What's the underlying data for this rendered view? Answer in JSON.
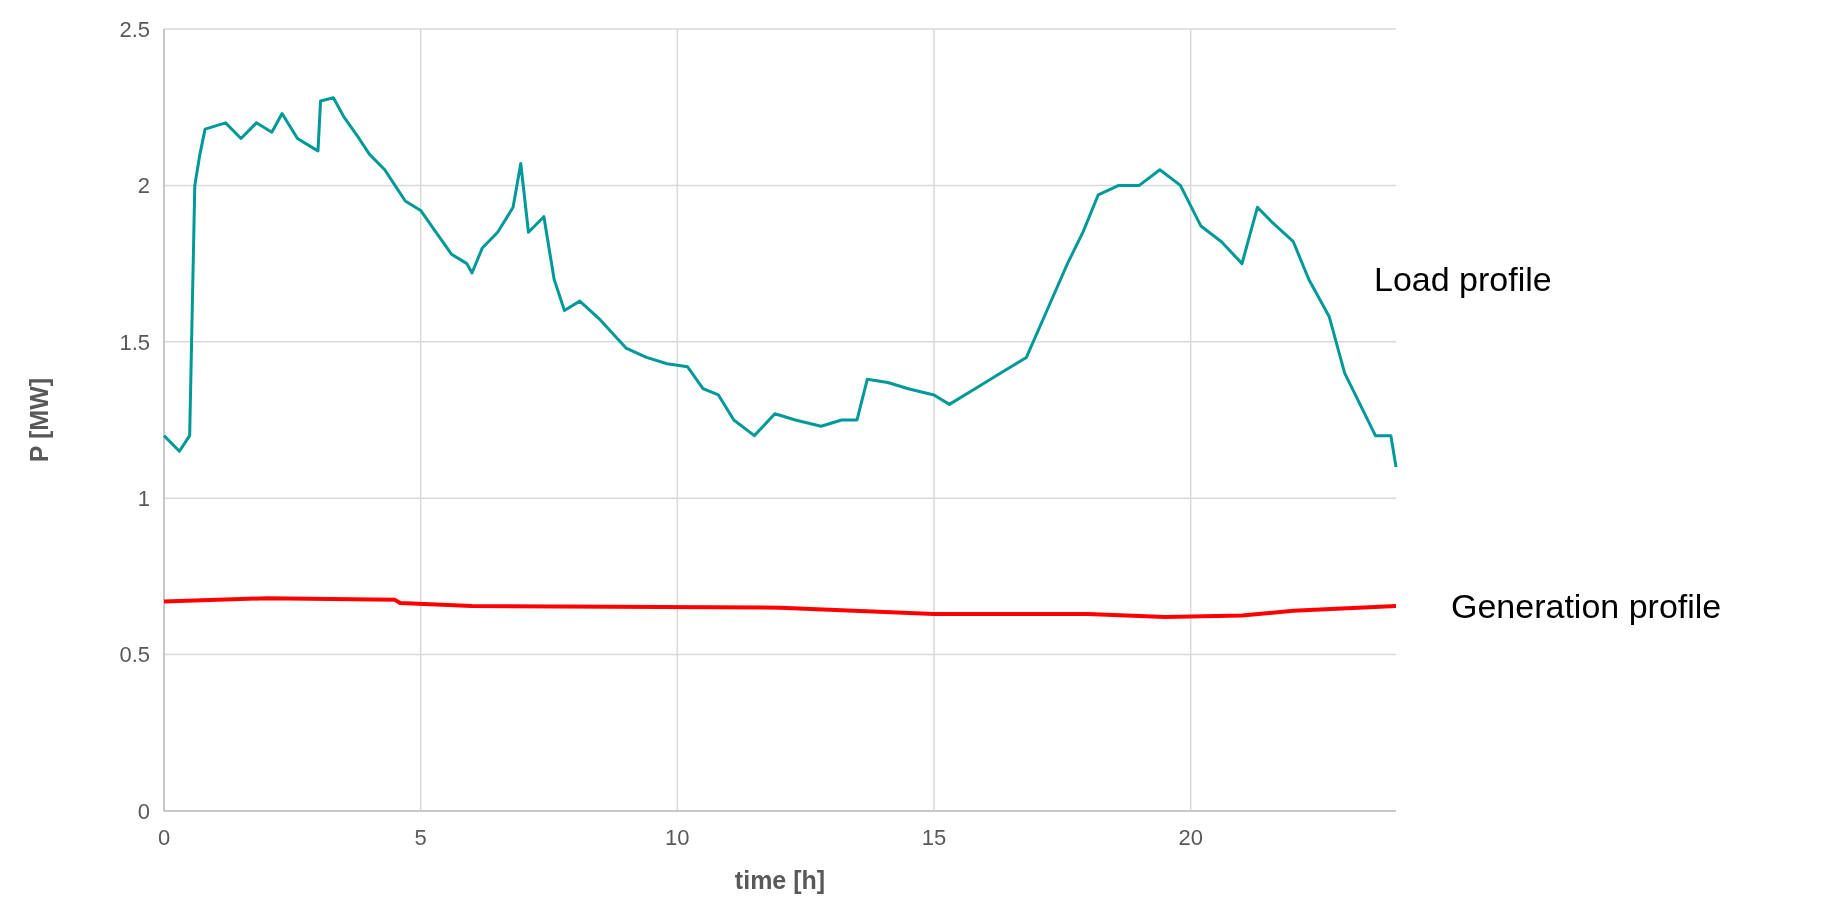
{
  "chart_data": {
    "type": "line",
    "xlabel": "time [h]",
    "ylabel": "P [MW]",
    "xlim": [
      0,
      24
    ],
    "xticks": [
      0,
      5,
      10,
      15,
      20
    ],
    "ylim": [
      0,
      2.5
    ],
    "yticks": [
      0,
      0.5,
      1,
      1.5,
      2,
      2.5
    ],
    "grid": true,
    "marker": "none",
    "line_style": "solid",
    "series": [
      {
        "name": "Load profile",
        "color": "#009999",
        "x": [
          0,
          0.3,
          0.5,
          0.55,
          0.6,
          0.7,
          0.8,
          1.2,
          1.5,
          1.8,
          2.1,
          2.3,
          2.6,
          2.9,
          3.0,
          3.05,
          3.3,
          3.5,
          3.8,
          4.0,
          4.3,
          4.5,
          4.7,
          5.0,
          5.3,
          5.6,
          5.9,
          6.0,
          6.2,
          6.5,
          6.8,
          6.95,
          7.1,
          7.4,
          7.6,
          7.8,
          8.1,
          8.5,
          9.0,
          9.4,
          9.8,
          10.2,
          10.5,
          10.8,
          11.1,
          11.5,
          11.9,
          12.3,
          12.8,
          13.2,
          13.5,
          13.7,
          14.1,
          14.5,
          15.0,
          15.3,
          15.8,
          16.3,
          16.8,
          17.2,
          17.6,
          17.9,
          18.2,
          18.6,
          19.0,
          19.4,
          19.8,
          20.2,
          20.6,
          21.0,
          21.3,
          21.6,
          22.0,
          22.3,
          22.7,
          23.0,
          23.3,
          23.6,
          23.9,
          24
        ],
        "values": [
          1.2,
          1.15,
          1.2,
          1.6,
          2.0,
          2.1,
          2.18,
          2.2,
          2.15,
          2.2,
          2.17,
          2.23,
          2.15,
          2.12,
          2.11,
          2.27,
          2.28,
          2.22,
          2.15,
          2.1,
          2.05,
          2.0,
          1.95,
          1.92,
          1.85,
          1.78,
          1.75,
          1.72,
          1.8,
          1.85,
          1.93,
          2.07,
          1.85,
          1.9,
          1.7,
          1.6,
          1.63,
          1.57,
          1.48,
          1.45,
          1.43,
          1.42,
          1.35,
          1.33,
          1.25,
          1.2,
          1.27,
          1.25,
          1.23,
          1.25,
          1.25,
          1.38,
          1.37,
          1.35,
          1.33,
          1.3,
          1.35,
          1.4,
          1.45,
          1.6,
          1.75,
          1.85,
          1.97,
          2.0,
          2.0,
          2.05,
          2.0,
          1.87,
          1.82,
          1.75,
          1.93,
          1.88,
          1.82,
          1.7,
          1.58,
          1.4,
          1.3,
          1.2,
          1.2,
          1.1
        ]
      },
      {
        "name": "Generation profile",
        "color": "#ff0000",
        "x": [
          0,
          2,
          4.5,
          4.6,
          6,
          12,
          15,
          18,
          19.5,
          21,
          22,
          24
        ],
        "values": [
          0.67,
          0.68,
          0.675,
          0.665,
          0.655,
          0.65,
          0.63,
          0.63,
          0.62,
          0.625,
          0.64,
          0.655
        ]
      }
    ]
  }
}
